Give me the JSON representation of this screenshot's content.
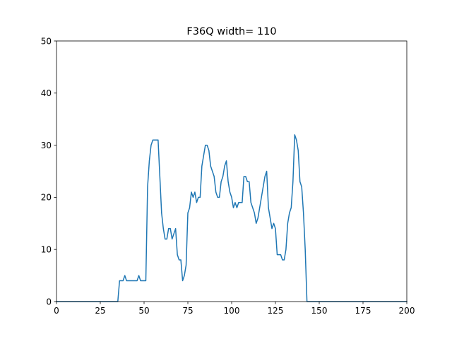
{
  "chart_data": {
    "type": "line",
    "title": "F36Q width= 110",
    "xlabel": "",
    "ylabel": "",
    "xlim": [
      0,
      200
    ],
    "ylim": [
      0,
      50
    ],
    "xticks": [
      0,
      25,
      50,
      75,
      100,
      125,
      150,
      175,
      200
    ],
    "yticks": [
      0,
      10,
      20,
      30,
      40,
      50
    ],
    "grid": false,
    "series": [
      {
        "color": "#1f77b4",
        "x": [
          0,
          35,
          36,
          37,
          38,
          39,
          40,
          41,
          42,
          43,
          44,
          45,
          46,
          47,
          48,
          49,
          50,
          51,
          52,
          53,
          54,
          55,
          56,
          57,
          58,
          59,
          60,
          61,
          62,
          63,
          64,
          65,
          66,
          67,
          68,
          69,
          70,
          71,
          72,
          73,
          74,
          75,
          76,
          77,
          78,
          79,
          80,
          81,
          82,
          83,
          84,
          85,
          86,
          87,
          88,
          89,
          90,
          91,
          92,
          93,
          94,
          95,
          96,
          97,
          98,
          99,
          100,
          101,
          102,
          103,
          104,
          105,
          106,
          107,
          108,
          109,
          110,
          111,
          112,
          113,
          114,
          115,
          116,
          117,
          118,
          119,
          120,
          121,
          122,
          123,
          124,
          125,
          126,
          127,
          128,
          129,
          130,
          131,
          132,
          133,
          134,
          135,
          136,
          137,
          138,
          139,
          140,
          141,
          142,
          143,
          144,
          145,
          146,
          200
        ],
        "y": [
          0,
          0,
          4,
          4,
          4,
          5,
          4,
          4,
          4,
          4,
          4,
          4,
          4,
          5,
          4,
          4,
          4,
          4,
          22,
          27,
          30,
          31,
          31,
          31,
          31,
          24,
          17,
          14,
          12,
          12,
          14,
          14,
          12,
          13,
          14,
          9,
          8,
          8,
          4,
          5,
          7,
          17,
          18,
          21,
          20,
          21,
          19,
          20,
          20,
          26,
          28,
          30,
          30,
          29,
          26,
          25,
          24,
          21,
          20,
          20,
          23,
          24,
          26,
          27,
          23,
          21,
          20,
          18,
          19,
          18,
          19,
          19,
          19,
          24,
          24,
          23,
          23,
          19,
          18,
          17,
          15,
          16,
          18,
          20,
          22,
          24,
          25,
          18,
          16,
          14,
          15,
          14,
          9,
          9,
          9,
          8,
          8,
          10,
          15,
          17,
          18,
          23,
          32,
          31,
          29,
          23,
          22,
          17,
          10,
          0,
          0,
          0,
          0,
          0
        ]
      }
    ]
  }
}
